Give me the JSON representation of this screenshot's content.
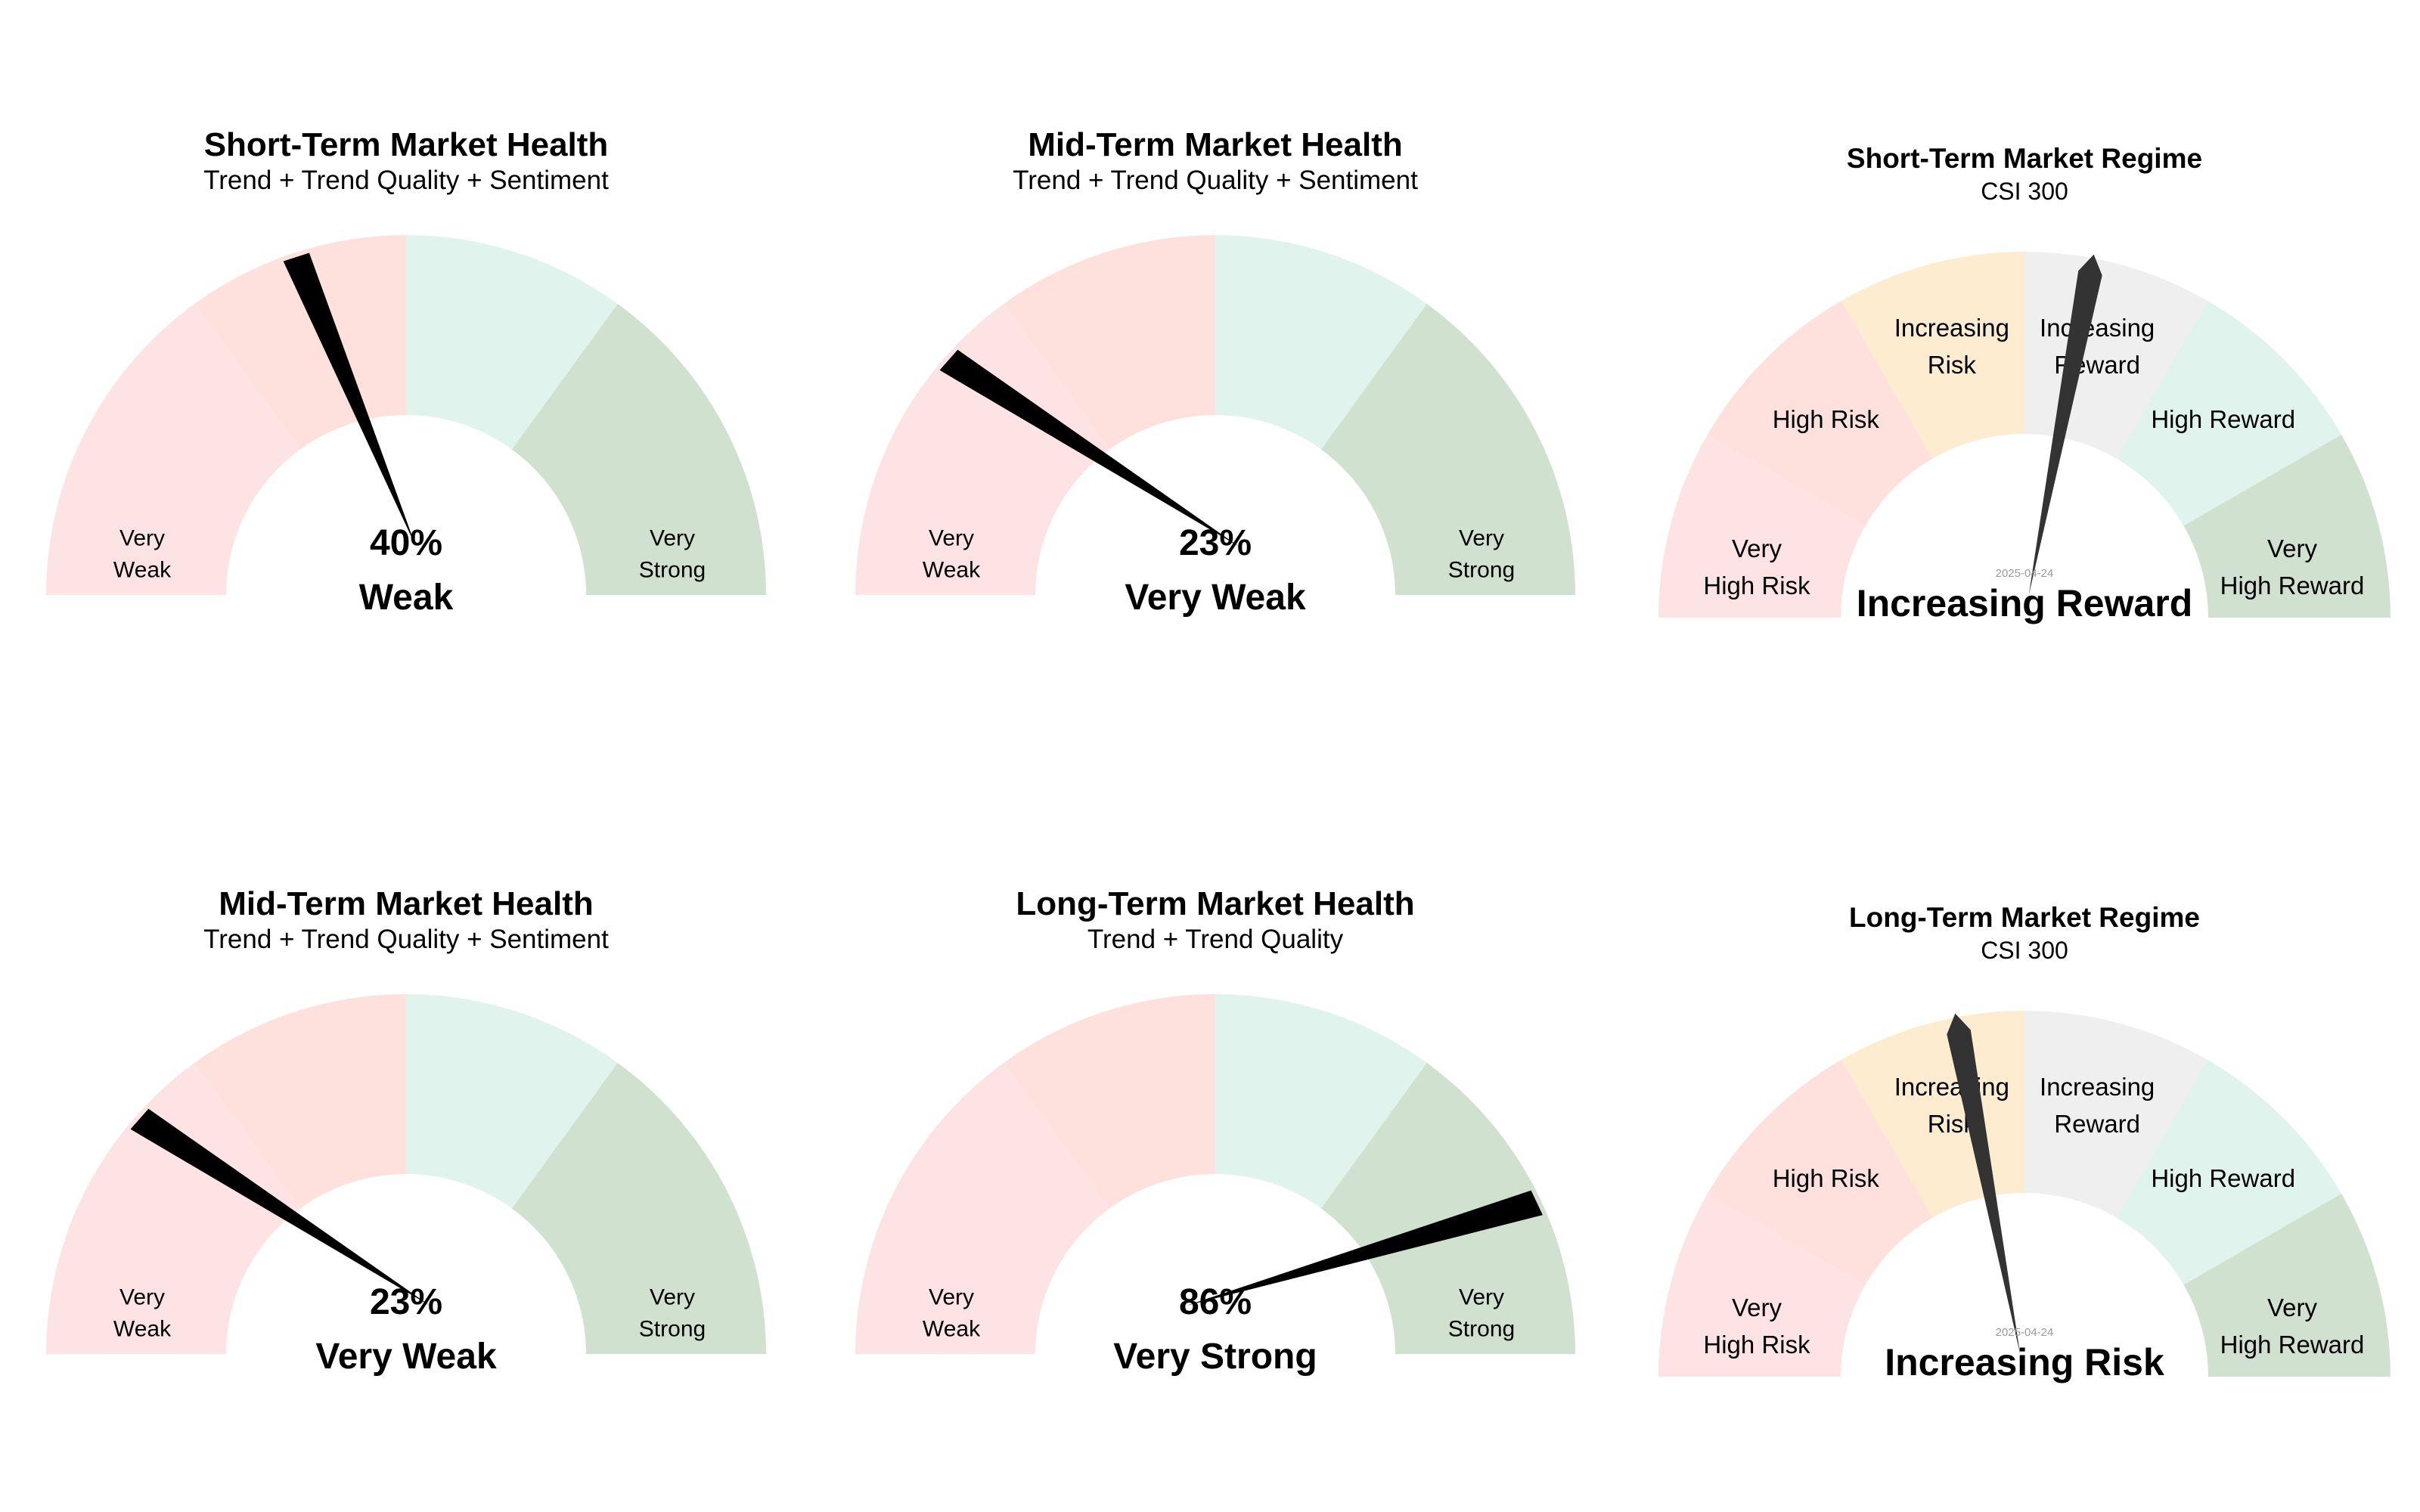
{
  "colors": {
    "very_weak": "#fee3e4",
    "weak": "#fee1dc",
    "strong": "#e0f3ec",
    "very_strong": "#d0e2cf",
    "neutral_regime": "#efefef",
    "increasing_risk": "#fdeccf",
    "needle_health": "#000000",
    "needle_regime": "#333333",
    "date_text": "#9a9a9a"
  },
  "chart_data": [
    {
      "type": "gauge",
      "variant": "health",
      "title": "Short-Term Market Health",
      "subtitle": "Trend + Trend Quality + Sentiment",
      "value": 40,
      "value_label": "40%",
      "status": "Weak",
      "zones": [
        {
          "from": 0,
          "to": 30,
          "label": [
            "Very",
            "Weak"
          ],
          "color": "very_weak"
        },
        {
          "from": 30,
          "to": 50,
          "label": [],
          "color": "weak"
        },
        {
          "from": 50,
          "to": 70,
          "label": [],
          "color": "strong"
        },
        {
          "from": 70,
          "to": 100,
          "label": [
            "Very",
            "Strong"
          ],
          "color": "very_strong"
        }
      ]
    },
    {
      "type": "gauge",
      "variant": "health",
      "title": "Mid-Term Market Health",
      "subtitle": "Trend + Trend Quality + Sentiment",
      "value": 23,
      "value_label": "23%",
      "status": "Very Weak",
      "zones": [
        {
          "from": 0,
          "to": 30,
          "label": [
            "Very",
            "Weak"
          ],
          "color": "very_weak"
        },
        {
          "from": 30,
          "to": 50,
          "label": [],
          "color": "weak"
        },
        {
          "from": 50,
          "to": 70,
          "label": [],
          "color": "strong"
        },
        {
          "from": 70,
          "to": 100,
          "label": [
            "Very",
            "Strong"
          ],
          "color": "very_strong"
        }
      ]
    },
    {
      "type": "gauge",
      "variant": "regime",
      "title": "Short-Term Market Regime",
      "subtitle": "CSI 300",
      "value": 56,
      "date": "2025-04-24",
      "status": "Increasing Reward",
      "zones": [
        {
          "from": 0,
          "to": 16.67,
          "label": [
            "Very",
            "High Risk"
          ],
          "color": "very_weak"
        },
        {
          "from": 16.67,
          "to": 33.33,
          "label": [
            "High Risk"
          ],
          "color": "weak"
        },
        {
          "from": 33.33,
          "to": 50,
          "label": [
            "Increasing",
            "Risk"
          ],
          "color": "increasing_risk"
        },
        {
          "from": 50,
          "to": 66.67,
          "label": [
            "Increasing",
            "Reward"
          ],
          "color": "neutral_regime"
        },
        {
          "from": 66.67,
          "to": 83.33,
          "label": [
            "High Reward"
          ],
          "color": "strong"
        },
        {
          "from": 83.33,
          "to": 100,
          "label": [
            "Very",
            "High Reward"
          ],
          "color": "very_strong"
        }
      ]
    },
    {
      "type": "gauge",
      "variant": "health",
      "title": "Mid-Term Market Health",
      "subtitle": "Trend + Trend Quality + Sentiment",
      "value": 23,
      "value_label": "23%",
      "status": "Very Weak",
      "zones": [
        {
          "from": 0,
          "to": 30,
          "label": [
            "Very",
            "Weak"
          ],
          "color": "very_weak"
        },
        {
          "from": 30,
          "to": 50,
          "label": [],
          "color": "weak"
        },
        {
          "from": 50,
          "to": 70,
          "label": [],
          "color": "strong"
        },
        {
          "from": 70,
          "to": 100,
          "label": [
            "Very",
            "Strong"
          ],
          "color": "very_strong"
        }
      ]
    },
    {
      "type": "gauge",
      "variant": "health",
      "title": "Long-Term Market Health",
      "subtitle": "Trend + Trend Quality",
      "value": 86,
      "value_label": "86%",
      "status": "Very Strong",
      "zones": [
        {
          "from": 0,
          "to": 30,
          "label": [
            "Very",
            "Weak"
          ],
          "color": "very_weak"
        },
        {
          "from": 30,
          "to": 50,
          "label": [],
          "color": "weak"
        },
        {
          "from": 50,
          "to": 70,
          "label": [],
          "color": "strong"
        },
        {
          "from": 70,
          "to": 100,
          "label": [
            "Very",
            "Strong"
          ],
          "color": "very_strong"
        }
      ]
    },
    {
      "type": "gauge",
      "variant": "regime",
      "title": "Long-Term Market Regime",
      "subtitle": "CSI 300",
      "value": 44,
      "date": "2025-04-24",
      "status": "Increasing Risk",
      "zones": [
        {
          "from": 0,
          "to": 16.67,
          "label": [
            "Very",
            "High Risk"
          ],
          "color": "very_weak"
        },
        {
          "from": 16.67,
          "to": 33.33,
          "label": [
            "High Risk"
          ],
          "color": "weak"
        },
        {
          "from": 33.33,
          "to": 50,
          "label": [
            "Increasing",
            "Risk"
          ],
          "color": "increasing_risk"
        },
        {
          "from": 50,
          "to": 66.67,
          "label": [
            "Increasing",
            "Reward"
          ],
          "color": "neutral_regime"
        },
        {
          "from": 66.67,
          "to": 83.33,
          "label": [
            "High Reward"
          ],
          "color": "strong"
        },
        {
          "from": 83.33,
          "to": 100,
          "label": [
            "Very",
            "High Reward"
          ],
          "color": "very_strong"
        }
      ]
    }
  ]
}
